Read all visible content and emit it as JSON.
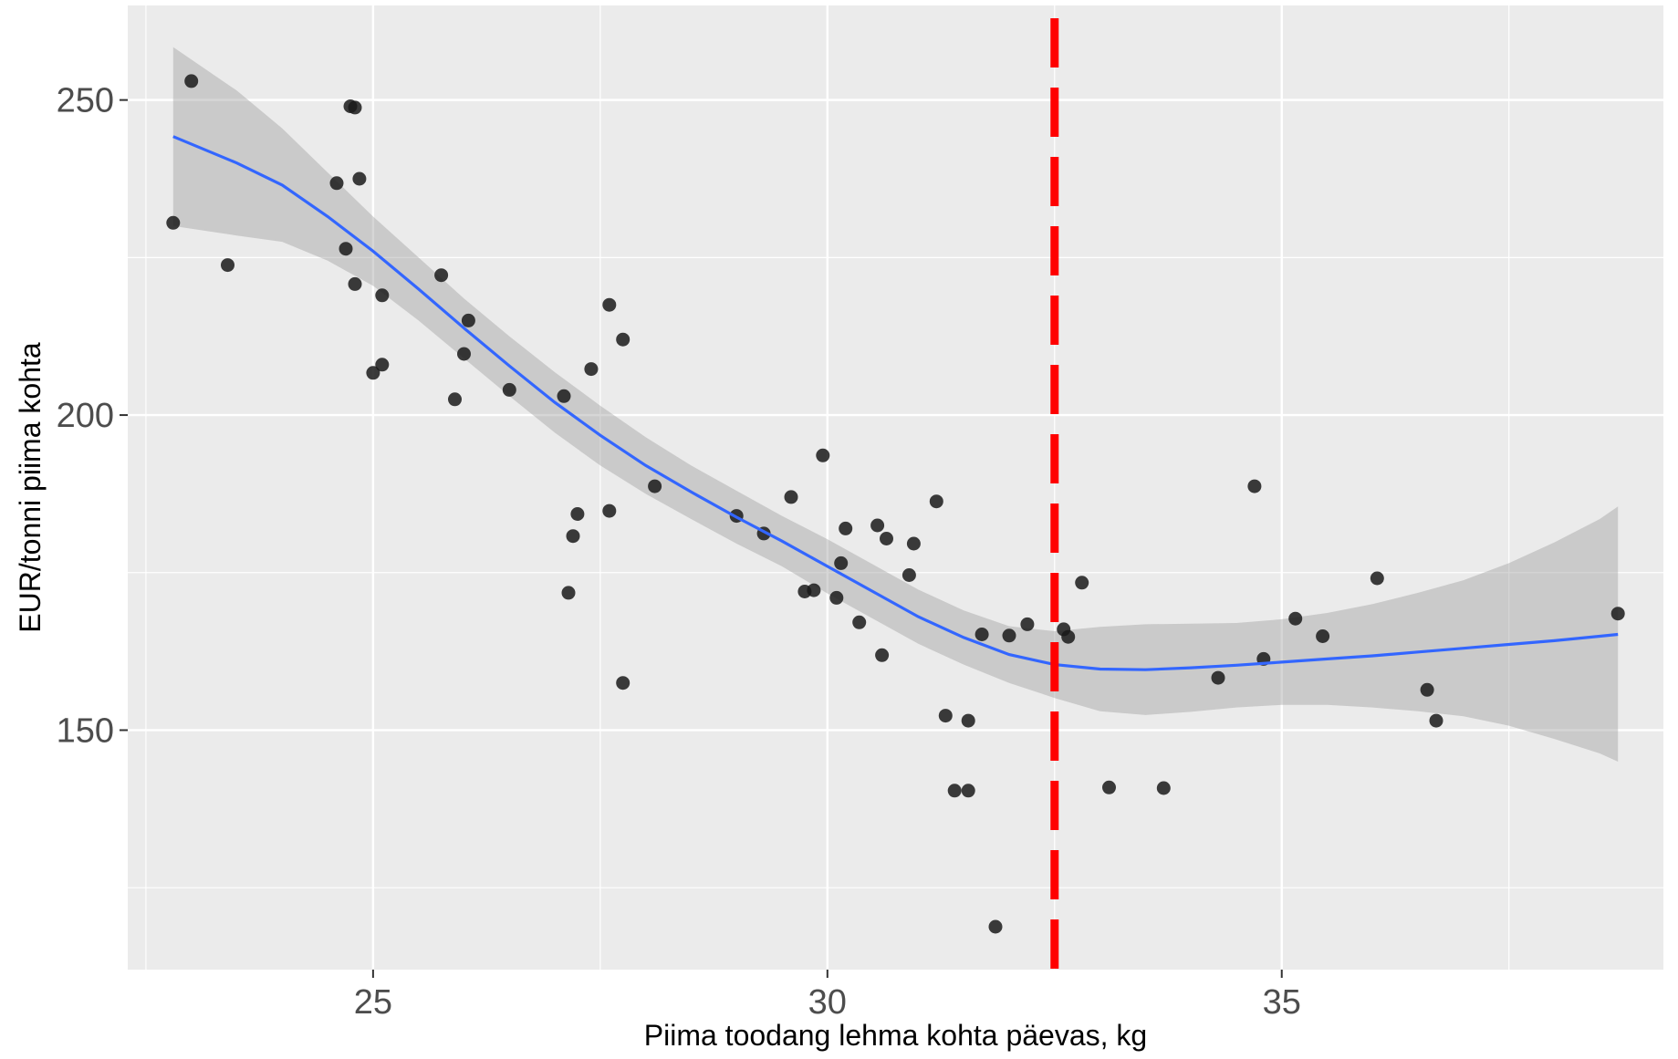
{
  "chart_data": {
    "type": "scatter",
    "title": "",
    "xlabel": "Piima toodang lehma kohta päevas, kg",
    "ylabel": "EUR/tonni piima kohta",
    "xlim": [
      22.3,
      39.2
    ],
    "ylim": [
      112,
      265
    ],
    "x_ticks": [
      25,
      30,
      35
    ],
    "x_tick_labels": [
      "25",
      "30",
      "35"
    ],
    "x_minor_grid": [
      22.5,
      27.5,
      32.5,
      37.5
    ],
    "y_ticks": [
      150,
      200,
      250
    ],
    "y_tick_labels": [
      "150",
      "200",
      "250"
    ],
    "y_minor_grid": [
      125,
      175,
      225
    ],
    "grid": true,
    "background": "#EBEBEB",
    "point_color": "#1a1a1a",
    "smooth_color": "#3366FF",
    "ribbon_color": "#999999",
    "vline_color": "#FF0000",
    "vline_x": 32.5,
    "points": [
      {
        "x": 22.8,
        "y": 230.5
      },
      {
        "x": 23.0,
        "y": 253.0
      },
      {
        "x": 23.4,
        "y": 223.8
      },
      {
        "x": 24.6,
        "y": 236.8
      },
      {
        "x": 24.7,
        "y": 226.4
      },
      {
        "x": 24.75,
        "y": 249.0
      },
      {
        "x": 24.8,
        "y": 248.8
      },
      {
        "x": 24.8,
        "y": 220.8
      },
      {
        "x": 24.85,
        "y": 237.5
      },
      {
        "x": 25.1,
        "y": 219.0
      },
      {
        "x": 25.0,
        "y": 206.7
      },
      {
        "x": 25.1,
        "y": 208.0
      },
      {
        "x": 25.75,
        "y": 222.2
      },
      {
        "x": 25.9,
        "y": 202.5
      },
      {
        "x": 26.0,
        "y": 209.7
      },
      {
        "x": 26.05,
        "y": 215.0
      },
      {
        "x": 26.5,
        "y": 204.0
      },
      {
        "x": 27.1,
        "y": 203.0
      },
      {
        "x": 27.15,
        "y": 171.8
      },
      {
        "x": 27.2,
        "y": 180.8
      },
      {
        "x": 27.25,
        "y": 184.3
      },
      {
        "x": 27.4,
        "y": 207.3
      },
      {
        "x": 27.6,
        "y": 217.5
      },
      {
        "x": 27.6,
        "y": 184.8
      },
      {
        "x": 27.75,
        "y": 212.0
      },
      {
        "x": 27.75,
        "y": 157.5
      },
      {
        "x": 28.1,
        "y": 188.7
      },
      {
        "x": 29.0,
        "y": 184.0
      },
      {
        "x": 29.3,
        "y": 181.2
      },
      {
        "x": 29.6,
        "y": 187.0
      },
      {
        "x": 29.75,
        "y": 172.0
      },
      {
        "x": 29.85,
        "y": 172.2
      },
      {
        "x": 29.95,
        "y": 193.6
      },
      {
        "x": 30.1,
        "y": 171.0
      },
      {
        "x": 30.15,
        "y": 176.5
      },
      {
        "x": 30.2,
        "y": 182.0
      },
      {
        "x": 30.35,
        "y": 167.1
      },
      {
        "x": 30.55,
        "y": 182.5
      },
      {
        "x": 30.6,
        "y": 161.9
      },
      {
        "x": 30.65,
        "y": 180.4
      },
      {
        "x": 30.9,
        "y": 174.6
      },
      {
        "x": 30.95,
        "y": 179.6
      },
      {
        "x": 31.2,
        "y": 186.3
      },
      {
        "x": 31.3,
        "y": 152.3
      },
      {
        "x": 31.4,
        "y": 140.4
      },
      {
        "x": 31.55,
        "y": 140.4
      },
      {
        "x": 31.55,
        "y": 151.5
      },
      {
        "x": 31.7,
        "y": 165.2
      },
      {
        "x": 31.85,
        "y": 118.8
      },
      {
        "x": 32.0,
        "y": 165.0
      },
      {
        "x": 32.2,
        "y": 166.8
      },
      {
        "x": 32.6,
        "y": 166.0
      },
      {
        "x": 32.65,
        "y": 164.8
      },
      {
        "x": 32.8,
        "y": 173.4
      },
      {
        "x": 33.1,
        "y": 140.9
      },
      {
        "x": 33.7,
        "y": 140.8
      },
      {
        "x": 34.3,
        "y": 158.3
      },
      {
        "x": 34.7,
        "y": 188.7
      },
      {
        "x": 34.8,
        "y": 161.3
      },
      {
        "x": 35.15,
        "y": 167.7
      },
      {
        "x": 35.45,
        "y": 164.9
      },
      {
        "x": 36.05,
        "y": 174.1
      },
      {
        "x": 36.6,
        "y": 156.4
      },
      {
        "x": 36.7,
        "y": 151.5
      },
      {
        "x": 38.7,
        "y": 168.5
      }
    ],
    "smooth_line": [
      {
        "x": 22.8,
        "y": 244.2
      },
      {
        "x": 23.5,
        "y": 240.0
      },
      {
        "x": 24.0,
        "y": 236.5
      },
      {
        "x": 24.5,
        "y": 231.5
      },
      {
        "x": 25.0,
        "y": 226.0
      },
      {
        "x": 25.5,
        "y": 220.0
      },
      {
        "x": 26.0,
        "y": 213.8
      },
      {
        "x": 26.5,
        "y": 207.8
      },
      {
        "x": 27.0,
        "y": 202.0
      },
      {
        "x": 27.5,
        "y": 196.8
      },
      {
        "x": 28.0,
        "y": 192.0
      },
      {
        "x": 28.5,
        "y": 187.8
      },
      {
        "x": 29.0,
        "y": 183.8
      },
      {
        "x": 29.5,
        "y": 180.0
      },
      {
        "x": 30.0,
        "y": 176.0
      },
      {
        "x": 30.5,
        "y": 172.0
      },
      {
        "x": 31.0,
        "y": 168.0
      },
      {
        "x": 31.5,
        "y": 164.7
      },
      {
        "x": 32.0,
        "y": 162.0
      },
      {
        "x": 32.5,
        "y": 160.4
      },
      {
        "x": 33.0,
        "y": 159.7
      },
      {
        "x": 33.5,
        "y": 159.6
      },
      {
        "x": 34.0,
        "y": 159.9
      },
      {
        "x": 34.5,
        "y": 160.3
      },
      {
        "x": 35.0,
        "y": 160.8
      },
      {
        "x": 35.5,
        "y": 161.3
      },
      {
        "x": 36.0,
        "y": 161.8
      },
      {
        "x": 36.5,
        "y": 162.4
      },
      {
        "x": 37.0,
        "y": 163.0
      },
      {
        "x": 37.5,
        "y": 163.6
      },
      {
        "x": 38.0,
        "y": 164.2
      },
      {
        "x": 38.5,
        "y": 164.9
      },
      {
        "x": 38.7,
        "y": 165.2
      }
    ],
    "ribbon_upper": [
      {
        "x": 22.8,
        "y": 258.4
      },
      {
        "x": 23.5,
        "y": 251.5
      },
      {
        "x": 24.0,
        "y": 245.5
      },
      {
        "x": 24.5,
        "y": 238.5
      },
      {
        "x": 25.0,
        "y": 231.5
      },
      {
        "x": 25.5,
        "y": 225.0
      },
      {
        "x": 26.0,
        "y": 218.5
      },
      {
        "x": 26.5,
        "y": 212.5
      },
      {
        "x": 27.0,
        "y": 206.8
      },
      {
        "x": 27.5,
        "y": 201.5
      },
      {
        "x": 28.0,
        "y": 196.5
      },
      {
        "x": 28.5,
        "y": 192.0
      },
      {
        "x": 29.0,
        "y": 188.0
      },
      {
        "x": 29.5,
        "y": 184.0
      },
      {
        "x": 30.0,
        "y": 180.3
      },
      {
        "x": 30.5,
        "y": 176.3
      },
      {
        "x": 31.0,
        "y": 172.3
      },
      {
        "x": 31.5,
        "y": 169.0
      },
      {
        "x": 32.0,
        "y": 166.5
      },
      {
        "x": 32.5,
        "y": 165.7
      },
      {
        "x": 33.0,
        "y": 166.4
      },
      {
        "x": 33.5,
        "y": 166.8
      },
      {
        "x": 34.0,
        "y": 166.9
      },
      {
        "x": 34.5,
        "y": 167.0
      },
      {
        "x": 35.0,
        "y": 167.6
      },
      {
        "x": 35.5,
        "y": 168.6
      },
      {
        "x": 36.0,
        "y": 170.0
      },
      {
        "x": 36.5,
        "y": 171.8
      },
      {
        "x": 37.0,
        "y": 173.8
      },
      {
        "x": 37.5,
        "y": 176.5
      },
      {
        "x": 38.0,
        "y": 179.8
      },
      {
        "x": 38.5,
        "y": 183.5
      },
      {
        "x": 38.7,
        "y": 185.5
      }
    ],
    "ribbon_lower": [
      {
        "x": 22.8,
        "y": 230.0
      },
      {
        "x": 23.5,
        "y": 228.5
      },
      {
        "x": 24.0,
        "y": 227.5
      },
      {
        "x": 24.5,
        "y": 224.5
      },
      {
        "x": 25.0,
        "y": 220.5
      },
      {
        "x": 25.5,
        "y": 215.0
      },
      {
        "x": 26.0,
        "y": 209.0
      },
      {
        "x": 26.5,
        "y": 203.0
      },
      {
        "x": 27.0,
        "y": 197.2
      },
      {
        "x": 27.5,
        "y": 192.0
      },
      {
        "x": 28.0,
        "y": 187.5
      },
      {
        "x": 28.5,
        "y": 183.5
      },
      {
        "x": 29.0,
        "y": 179.6
      },
      {
        "x": 29.5,
        "y": 176.0
      },
      {
        "x": 30.0,
        "y": 171.7
      },
      {
        "x": 30.5,
        "y": 167.7
      },
      {
        "x": 31.0,
        "y": 163.7
      },
      {
        "x": 31.5,
        "y": 160.4
      },
      {
        "x": 32.0,
        "y": 157.5
      },
      {
        "x": 32.5,
        "y": 155.1
      },
      {
        "x": 33.0,
        "y": 153.0
      },
      {
        "x": 33.5,
        "y": 152.4
      },
      {
        "x": 34.0,
        "y": 152.9
      },
      {
        "x": 34.5,
        "y": 153.6
      },
      {
        "x": 35.0,
        "y": 154.0
      },
      {
        "x": 35.5,
        "y": 154.0
      },
      {
        "x": 36.0,
        "y": 153.6
      },
      {
        "x": 36.5,
        "y": 153.0
      },
      {
        "x": 37.0,
        "y": 152.2
      },
      {
        "x": 37.5,
        "y": 150.7
      },
      {
        "x": 38.0,
        "y": 148.6
      },
      {
        "x": 38.5,
        "y": 146.3
      },
      {
        "x": 38.7,
        "y": 145.0
      }
    ]
  }
}
